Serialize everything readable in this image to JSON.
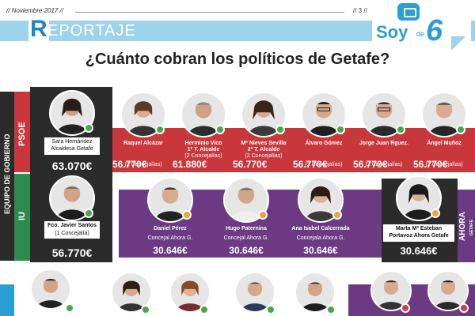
{
  "header": {
    "date": "// Noviembre 2017 //",
    "page": "// 3 //"
  },
  "section": {
    "cap": "R",
    "rest": "EPORTAJE"
  },
  "logo": {
    "soy": "Soy",
    "de": "de",
    "six": "6"
  },
  "headline": "¿Cuánto cobran los políticos de Getafe?",
  "side_labels": {
    "gobierno": "EQUIPO DE GOBIERNO",
    "psoe": "PSOE",
    "iu": "IU",
    "ahora": "AHORA",
    "ahora_sub": "GETAFE"
  },
  "mayor": {
    "name": "Sara Hernández",
    "role": "Alcaldesa Getafe",
    "salary": "63.070€"
  },
  "psoe_members": [
    {
      "name": "Raquel Alcázar",
      "line2": "",
      "line3": "(2 Concejalías)",
      "salary": "56.770€"
    },
    {
      "name": "Herminio Vico",
      "line2": "1º T. Alcalde",
      "line3": "(2 Concejalías)",
      "salary": "61.880€"
    },
    {
      "name": "Mª Nieves Sevilla",
      "line2": "2º T. Alcalde",
      "line3": "(2 Concejalías)",
      "salary": "56.770€"
    },
    {
      "name": "Álvaro Gómez",
      "line2": "",
      "line3": "(2 Concejalías)",
      "salary": "56.770€"
    },
    {
      "name": "Jorge Juan Rguez.",
      "line2": "",
      "line3": "(2 Concejalías)",
      "salary": "56.770€"
    },
    {
      "name": "Ángel Muñoz",
      "line2": "",
      "line3": "(2 Concejalías)",
      "salary": "56.770€"
    }
  ],
  "iu_member": {
    "name": "Fco. Javier Santos",
    "role": "(1 Concejalía)",
    "salary": "56.770€"
  },
  "ahora_members": [
    {
      "name": "Daniel Pérez",
      "role": "Concejal Ahora G.",
      "salary": "30.646€"
    },
    {
      "name": "Hugo Paternina",
      "role": "Concejal Ahora G.",
      "salary": "30.646€"
    },
    {
      "name": "Ana Isabel Calcerrada",
      "role": "Concejala Ahora G.",
      "salary": "30.646€"
    }
  ],
  "ahora_lead": {
    "name": "Marta Mª Esteban",
    "role": "Portavoz Ahora Getafe",
    "salary": "30.646€"
  }
}
